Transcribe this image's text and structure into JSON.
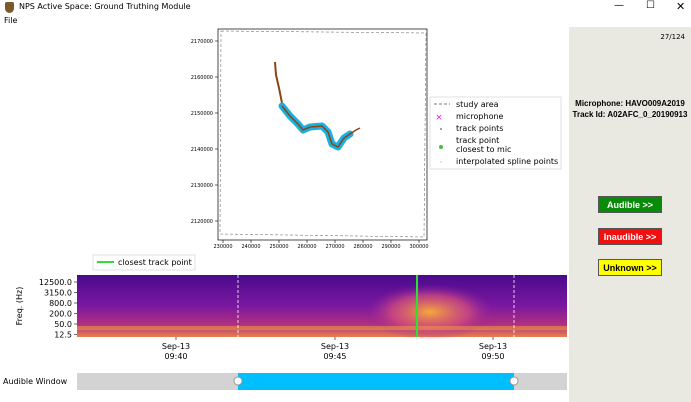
{
  "window": {
    "title": "NPS Active Space: Ground Truthing Module"
  },
  "menu": [
    "File"
  ],
  "map": {
    "yticks": [
      "2170000",
      "2160000",
      "2150000",
      "2140000",
      "2130000",
      "2120000"
    ],
    "xticks": [
      "230000",
      "240000",
      "250000",
      "260000",
      "270000",
      "280000",
      "290000",
      "300000"
    ],
    "legend": [
      "study area",
      "microphone",
      "track points",
      "track point\nclosest to mic",
      "interpolated spline points"
    ]
  },
  "spectrogram": {
    "legend": "closest track point",
    "ylabel": "Freq. (Hz)",
    "yticks": [
      "12500.0",
      "3150.0",
      "800.0",
      "200.0",
      "50.0",
      "12.5"
    ],
    "xticks": [
      [
        "Sep-13",
        "09:40"
      ],
      [
        "Sep-13",
        "09:45"
      ],
      [
        "Sep-13",
        "09:50"
      ]
    ]
  },
  "slider": {
    "label": "Audible Window"
  },
  "panel": {
    "counter": "27/124",
    "microphone": "Microphone: HAVO009A2019",
    "track": "Track Id: A02AFC_0_20190913",
    "buttons": [
      "Audible >>",
      "Inaudible >>",
      "Unknown >>"
    ]
  }
}
